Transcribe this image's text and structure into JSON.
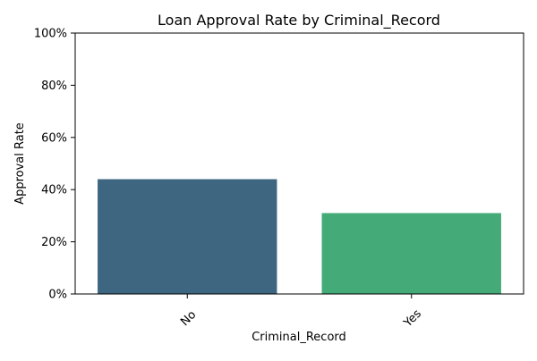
{
  "chart_data": {
    "type": "bar",
    "title": "Loan Approval Rate by Criminal_Record",
    "xlabel": "Criminal_Record",
    "ylabel": "Approval Rate",
    "categories": [
      "No",
      "Yes"
    ],
    "values": [
      0.44,
      0.31
    ],
    "ylim": [
      0,
      1
    ],
    "yticks": [
      0,
      0.2,
      0.4,
      0.6,
      0.8,
      1.0
    ],
    "ytick_labels": [
      "0%",
      "20%",
      "40%",
      "60%",
      "80%",
      "100%"
    ],
    "bar_colors": [
      "#3e6680",
      "#44aa77"
    ],
    "grid": false,
    "legend": "none"
  }
}
